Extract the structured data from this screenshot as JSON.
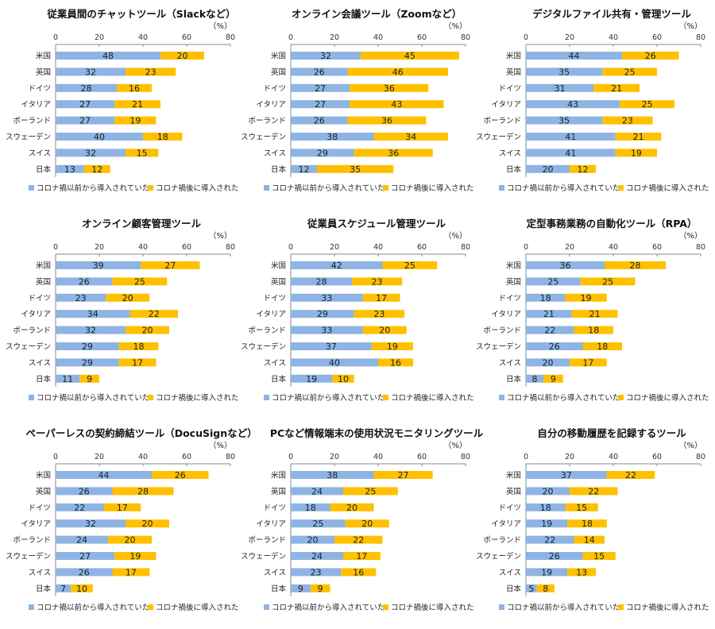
{
  "legend": {
    "before": "コロナ禍以前から導入されていた",
    "after": "コロナ禍後に導入された"
  },
  "unit_label": "（%）",
  "colors": {
    "before": "#8EB4E3",
    "after": "#FFC000",
    "axis": "#888888"
  },
  "chart_data": [
    {
      "type": "bar",
      "stacked": true,
      "orientation": "horizontal",
      "title": "従業員間のチャットツール（Slackなど）",
      "categories": [
        "米国",
        "英国",
        "ドイツ",
        "イタリア",
        "ポーランド",
        "スウェーデン",
        "スイス",
        "日本"
      ],
      "xlim": [
        0,
        80
      ],
      "xticks": [
        0,
        20,
        40,
        60,
        80
      ],
      "series": [
        {
          "name": "コロナ禍以前から導入されていた",
          "values": [
            48,
            32,
            28,
            27,
            27,
            40,
            32,
            13
          ]
        },
        {
          "name": "コロナ禍後に導入された",
          "values": [
            20,
            23,
            16,
            21,
            19,
            18,
            15,
            12
          ]
        }
      ]
    },
    {
      "type": "bar",
      "stacked": true,
      "orientation": "horizontal",
      "title": "オンライン会議ツール（Zoomなど）",
      "categories": [
        "米国",
        "英国",
        "ドイツ",
        "イタリア",
        "ポーランド",
        "スウェーデン",
        "スイス",
        "日本"
      ],
      "xlim": [
        0,
        80
      ],
      "xticks": [
        0,
        20,
        40,
        60,
        80
      ],
      "series": [
        {
          "name": "コロナ禍以前から導入されていた",
          "values": [
            32,
            26,
            27,
            27,
            26,
            38,
            29,
            12
          ]
        },
        {
          "name": "コロナ禍後に導入された",
          "values": [
            45,
            46,
            36,
            43,
            36,
            34,
            36,
            35
          ]
        }
      ]
    },
    {
      "type": "bar",
      "stacked": true,
      "orientation": "horizontal",
      "title": "デジタルファイル共有・管理ツール",
      "categories": [
        "米国",
        "英国",
        "ドイツ",
        "イタリア",
        "ポーランド",
        "スウェーデン",
        "スイス",
        "日本"
      ],
      "xlim": [
        0,
        80
      ],
      "xticks": [
        0,
        20,
        40,
        60,
        80
      ],
      "series": [
        {
          "name": "コロナ禍以前から導入されていた",
          "values": [
            44,
            35,
            31,
            43,
            35,
            41,
            41,
            20
          ]
        },
        {
          "name": "コロナ禍後に導入された",
          "values": [
            26,
            25,
            21,
            25,
            23,
            21,
            19,
            12
          ]
        }
      ]
    },
    {
      "type": "bar",
      "stacked": true,
      "orientation": "horizontal",
      "title": "オンライン顧客管理ツール",
      "categories": [
        "米国",
        "英国",
        "ドイツ",
        "イタリア",
        "ポーランド",
        "スウェーデン",
        "スイス",
        "日本"
      ],
      "xlim": [
        0,
        80
      ],
      "xticks": [
        0,
        20,
        40,
        60,
        80
      ],
      "series": [
        {
          "name": "コロナ禍以前から導入されていた",
          "values": [
            39,
            26,
            23,
            34,
            32,
            29,
            29,
            11
          ]
        },
        {
          "name": "コロナ禍後に導入された",
          "values": [
            27,
            25,
            20,
            22,
            20,
            18,
            17,
            9
          ]
        }
      ]
    },
    {
      "type": "bar",
      "stacked": true,
      "orientation": "horizontal",
      "title": "従業員スケジュール管理ツール",
      "categories": [
        "米国",
        "英国",
        "ドイツ",
        "イタリア",
        "ポーランド",
        "スウェーデン",
        "スイス",
        "日本"
      ],
      "xlim": [
        0,
        80
      ],
      "xticks": [
        0,
        20,
        40,
        60,
        80
      ],
      "series": [
        {
          "name": "コロナ禍以前から導入されていた",
          "values": [
            42,
            28,
            33,
            29,
            33,
            37,
            40,
            19
          ]
        },
        {
          "name": "コロナ禍後に導入された",
          "values": [
            25,
            23,
            17,
            23,
            20,
            19,
            16,
            10
          ]
        }
      ]
    },
    {
      "type": "bar",
      "stacked": true,
      "orientation": "horizontal",
      "title": "定型事務業務の自動化ツール（RPA）",
      "categories": [
        "米国",
        "英国",
        "ドイツ",
        "イタリア",
        "ポーランド",
        "スウェーデン",
        "スイス",
        "日本"
      ],
      "xlim": [
        0,
        80
      ],
      "xticks": [
        0,
        20,
        40,
        60,
        80
      ],
      "series": [
        {
          "name": "コロナ禍以前から導入されていた",
          "values": [
            36,
            25,
            18,
            21,
            22,
            26,
            20,
            8
          ]
        },
        {
          "name": "コロナ禍後に導入された",
          "values": [
            28,
            25,
            19,
            21,
            18,
            18,
            17,
            9
          ]
        }
      ]
    },
    {
      "type": "bar",
      "stacked": true,
      "orientation": "horizontal",
      "title": "ペーパーレスの契約締結ツール（DocuSignなど）",
      "categories": [
        "米国",
        "英国",
        "ドイツ",
        "イタリア",
        "ポーランド",
        "スウェーデン",
        "スイス",
        "日本"
      ],
      "xlim": [
        0,
        80
      ],
      "xticks": [
        0,
        20,
        40,
        60,
        80
      ],
      "series": [
        {
          "name": "コロナ禍以前から導入されていた",
          "values": [
            44,
            26,
            22,
            32,
            24,
            27,
            26,
            7
          ]
        },
        {
          "name": "コロナ禍後に導入された",
          "values": [
            26,
            28,
            17,
            20,
            20,
            19,
            17,
            10
          ]
        }
      ]
    },
    {
      "type": "bar",
      "stacked": true,
      "orientation": "horizontal",
      "title": "PCなど情報端末の使用状況モニタリングツール",
      "categories": [
        "米国",
        "英国",
        "ドイツ",
        "イタリア",
        "ポーランド",
        "スウェーデン",
        "スイス",
        "日本"
      ],
      "xlim": [
        0,
        80
      ],
      "xticks": [
        0,
        20,
        40,
        60,
        80
      ],
      "series": [
        {
          "name": "コロナ禍以前から導入されていた",
          "values": [
            38,
            24,
            18,
            25,
            20,
            24,
            23,
            9
          ]
        },
        {
          "name": "コロナ禍後に導入された",
          "values": [
            27,
            25,
            20,
            20,
            22,
            17,
            16,
            9
          ]
        }
      ]
    },
    {
      "type": "bar",
      "stacked": true,
      "orientation": "horizontal",
      "title": "自分の移動履歴を記録するツール",
      "categories": [
        "米国",
        "英国",
        "ドイツ",
        "イタリア",
        "ポーランド",
        "スウェーデン",
        "スイス",
        "日本"
      ],
      "xlim": [
        0,
        80
      ],
      "xticks": [
        0,
        20,
        40,
        60,
        80
      ],
      "series": [
        {
          "name": "コロナ禍以前から導入されていた",
          "values": [
            37,
            20,
            18,
            19,
            22,
            26,
            19,
            5
          ]
        },
        {
          "name": "コロナ禍後に導入された",
          "values": [
            22,
            22,
            15,
            18,
            14,
            15,
            13,
            8
          ]
        }
      ]
    }
  ]
}
